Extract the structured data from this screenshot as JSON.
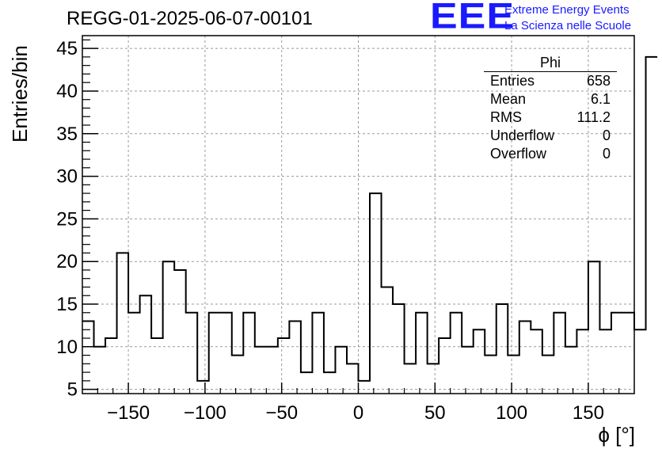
{
  "header": {
    "title": "REGG-01-2025-06-07-00101",
    "logo_text": "EEE",
    "logo_line1": "Extreme Energy Events",
    "logo_line2": "La Scienza nelle Scuole"
  },
  "stats_box": {
    "title": "Phi",
    "rows": [
      {
        "label": "Entries",
        "value": "658"
      },
      {
        "label": "Mean",
        "value": "6.1"
      },
      {
        "label": "RMS",
        "value": "111.2"
      },
      {
        "label": "Underflow",
        "value": "0"
      },
      {
        "label": "Overflow",
        "value": "0"
      }
    ]
  },
  "chart_data": {
    "type": "bar",
    "style": "step-histogram",
    "title": "REGG-01-2025-06-07-00101",
    "xlabel": "ϕ [°]",
    "ylabel": "Entries/bin",
    "xlim": [
      -180,
      180
    ],
    "ylim": [
      4.5,
      46.5
    ],
    "bin_width": 7.5,
    "bin_edges_start": -180,
    "values": [
      13,
      10,
      11,
      21,
      14,
      16,
      11,
      20,
      19,
      14,
      6,
      14,
      14,
      9,
      14,
      10,
      10,
      11,
      13,
      7,
      14,
      7,
      10,
      8,
      6,
      28,
      17,
      15,
      8,
      14,
      8,
      11,
      14,
      10,
      12,
      9,
      15,
      9,
      13,
      12,
      9,
      14,
      10,
      12,
      20,
      12,
      14,
      14,
      12,
      44
    ],
    "xticks": [
      -150,
      -100,
      -50,
      0,
      50,
      100,
      150
    ],
    "yticks": [
      5,
      10,
      15,
      20,
      25,
      30,
      35,
      40,
      45
    ],
    "grid": true,
    "legend": "top-right"
  }
}
